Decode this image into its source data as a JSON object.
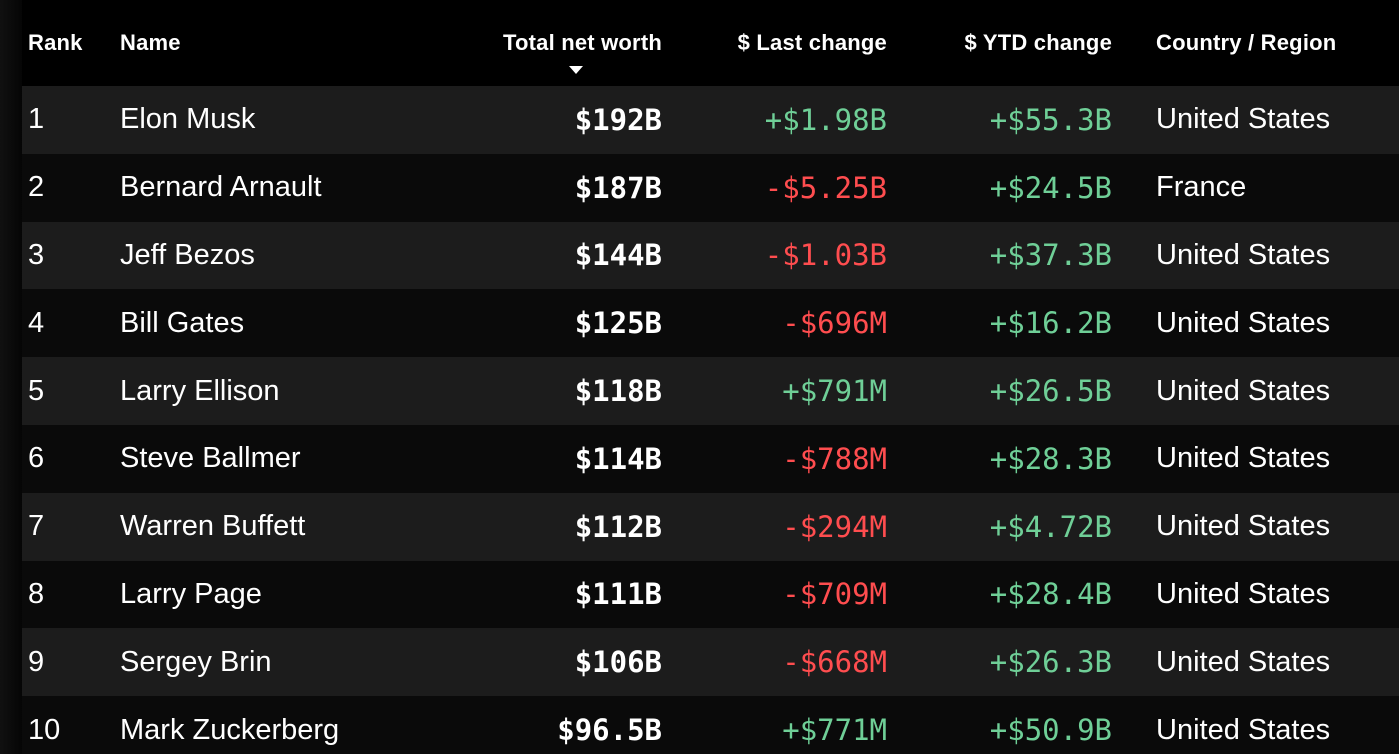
{
  "colors": {
    "background": "#000000",
    "row_alt": "#1c1c1c",
    "positive": "#6fcf97",
    "negative": "#ff4d4f"
  },
  "header": {
    "rank": "Rank",
    "name": "Name",
    "net_worth": "Total net worth",
    "last_change": "$ Last change",
    "ytd_change": "$ YTD change",
    "country": "Country / Region",
    "sort_icon": "caret-down-icon"
  },
  "rows": [
    {
      "rank": "1",
      "name": "Elon Musk",
      "net_worth": "$192B",
      "last_change": "+$1.98B",
      "ytd_change": "+$55.3B",
      "country": "United States"
    },
    {
      "rank": "2",
      "name": "Bernard Arnault",
      "net_worth": "$187B",
      "last_change": "-$5.25B",
      "ytd_change": "+$24.5B",
      "country": "France"
    },
    {
      "rank": "3",
      "name": "Jeff Bezos",
      "net_worth": "$144B",
      "last_change": "-$1.03B",
      "ytd_change": "+$37.3B",
      "country": "United States"
    },
    {
      "rank": "4",
      "name": "Bill Gates",
      "net_worth": "$125B",
      "last_change": "-$696M",
      "ytd_change": "+$16.2B",
      "country": "United States"
    },
    {
      "rank": "5",
      "name": "Larry Ellison",
      "net_worth": "$118B",
      "last_change": "+$791M",
      "ytd_change": "+$26.5B",
      "country": "United States"
    },
    {
      "rank": "6",
      "name": "Steve Ballmer",
      "net_worth": "$114B",
      "last_change": "-$788M",
      "ytd_change": "+$28.3B",
      "country": "United States"
    },
    {
      "rank": "7",
      "name": "Warren Buffett",
      "net_worth": "$112B",
      "last_change": "-$294M",
      "ytd_change": "+$4.72B",
      "country": "United States"
    },
    {
      "rank": "8",
      "name": "Larry Page",
      "net_worth": "$111B",
      "last_change": "-$709M",
      "ytd_change": "+$28.4B",
      "country": "United States"
    },
    {
      "rank": "9",
      "name": "Sergey Brin",
      "net_worth": "$106B",
      "last_change": "-$668M",
      "ytd_change": "+$26.3B",
      "country": "United States"
    },
    {
      "rank": "10",
      "name": "Mark Zuckerberg",
      "net_worth": "$96.5B",
      "last_change": "+$771M",
      "ytd_change": "+$50.9B",
      "country": "United States"
    }
  ]
}
